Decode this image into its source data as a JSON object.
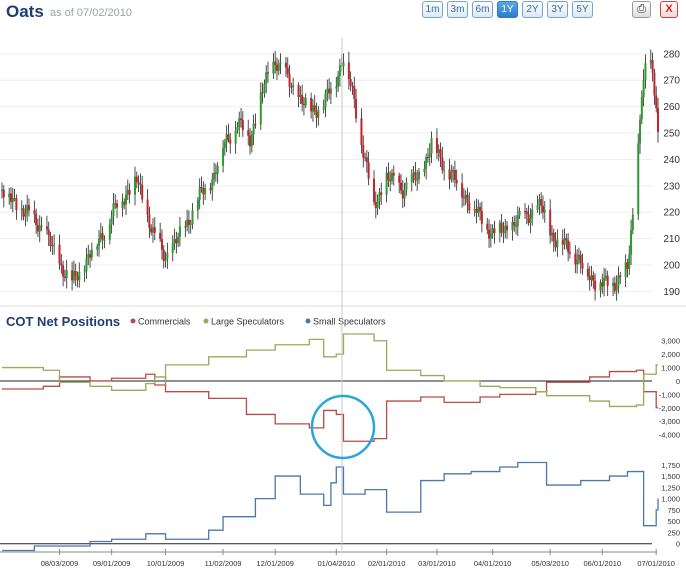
{
  "header": {
    "title": "Oats",
    "as_of": "as of 07/02/2010",
    "ranges": [
      "1m",
      "3m",
      "6m",
      "1Y",
      "2Y",
      "3Y",
      "5Y"
    ],
    "active_range": "1Y",
    "print_icon": "printer-icon",
    "close_label": "X"
  },
  "colors": {
    "up": "#2e9a2e",
    "down": "#c3232a",
    "commercials": "#b64c48",
    "large_speculators": "#9aaa58",
    "small_speculators": "#4a78ab",
    "highlight_circle": "#29a6dc"
  },
  "chart_data": [
    {
      "type": "candlestick",
      "title": "",
      "x_ticks": [
        "08/03/2009",
        "09/01/2009",
        "10/01/2009",
        "11/02/2009",
        "12/01/2009",
        "01/04/2010",
        "02/01/2010",
        "03/01/2010",
        "04/01/2010",
        "05/03/2010",
        "06/01/2010",
        "07/01/2010"
      ],
      "y_ticks": [
        190,
        200,
        210,
        220,
        230,
        240,
        250,
        260,
        270,
        280
      ],
      "ylim": [
        186,
        286
      ],
      "close_path": [
        [
          "07/02/2009",
          228
        ],
        [
          "07/15/2009",
          220
        ],
        [
          "07/25/2009",
          214
        ],
        [
          "08/01/2009",
          203
        ],
        [
          "08/10/2009",
          193
        ],
        [
          "08/20/2009",
          204
        ],
        [
          "08/28/2009",
          213
        ],
        [
          "09/05/2009",
          224
        ],
        [
          "09/15/2009",
          232
        ],
        [
          "09/25/2009",
          210
        ],
        [
          "10/01/2009",
          203
        ],
        [
          "10/10/2009",
          212
        ],
        [
          "10/20/2009",
          226
        ],
        [
          "10/28/2009",
          234
        ],
        [
          "11/02/2009",
          245
        ],
        [
          "11/10/2009",
          254
        ],
        [
          "11/17/2009",
          248
        ],
        [
          "11/25/2009",
          268
        ],
        [
          "12/01/2009",
          278
        ],
        [
          "12/10/2009",
          268
        ],
        [
          "12/20/2009",
          258
        ],
        [
          "12/28/2009",
          261
        ],
        [
          "01/04/2010",
          271
        ],
        [
          "01/08/2010",
          279
        ],
        [
          "01/14/2010",
          262
        ],
        [
          "01/20/2010",
          240
        ],
        [
          "01/25/2010",
          222
        ],
        [
          "02/01/2010",
          233
        ],
        [
          "02/10/2010",
          229
        ],
        [
          "02/20/2010",
          234
        ],
        [
          "02/26/2010",
          246
        ],
        [
          "03/05/2010",
          238
        ],
        [
          "03/15/2010",
          228
        ],
        [
          "03/25/2010",
          218
        ],
        [
          "04/01/2010",
          212
        ],
        [
          "04/10/2010",
          214
        ],
        [
          "04/20/2010",
          219
        ],
        [
          "04/28/2010",
          222
        ],
        [
          "05/05/2010",
          210
        ],
        [
          "05/15/2010",
          206
        ],
        [
          "05/22/2010",
          198
        ],
        [
          "05/28/2010",
          194
        ],
        [
          "06/05/2010",
          192
        ],
        [
          "06/15/2010",
          198
        ],
        [
          "06/19/2010",
          225
        ],
        [
          "06/23/2010",
          266
        ],
        [
          "06/27/2010",
          280
        ],
        [
          "07/01/2010",
          262
        ],
        [
          "07/02/2010",
          250
        ]
      ]
    },
    {
      "type": "line",
      "title": "COT Net Positions",
      "series": [
        {
          "name": "Commercials",
          "values": [
            [
              "07/02/2009",
              -600
            ],
            [
              "07/25/2009",
              -400
            ],
            [
              "08/03/2009",
              300
            ],
            [
              "08/20/2009",
              0
            ],
            [
              "09/01/2009",
              200
            ],
            [
              "09/20/2009",
              500
            ],
            [
              "09/25/2009",
              -300
            ],
            [
              "10/01/2009",
              300
            ],
            [
              "10/01/2009",
              -800
            ],
            [
              "10/25/2009",
              -1300
            ],
            [
              "11/15/2009",
              -2500
            ],
            [
              "12/01/2009",
              -3200
            ],
            [
              "12/20/2009",
              -3500
            ],
            [
              "12/28/2009",
              -2200
            ],
            [
              "01/04/2010",
              -2500
            ],
            [
              "01/08/2010",
              -4500
            ],
            [
              "01/25/2010",
              -4300
            ],
            [
              "02/01/2010",
              -1500
            ],
            [
              "02/20/2010",
              -1200
            ],
            [
              "03/05/2010",
              -1600
            ],
            [
              "03/25/2010",
              -1200
            ],
            [
              "04/05/2010",
              -1000
            ],
            [
              "04/25/2010",
              -800
            ],
            [
              "05/01/2010",
              -100
            ],
            [
              "05/25/2010",
              300
            ],
            [
              "06/05/2010",
              700
            ],
            [
              "06/20/2010",
              800
            ],
            [
              "06/24/2010",
              -800
            ],
            [
              "07/01/2010",
              -2000
            ],
            [
              "07/02/2010",
              -2000
            ]
          ]
        },
        {
          "name": "Large Speculators",
          "values": [
            [
              "07/02/2009",
              1000
            ],
            [
              "07/25/2009",
              800
            ],
            [
              "08/03/2009",
              -100
            ],
            [
              "08/20/2009",
              -400
            ],
            [
              "09/01/2009",
              -700
            ],
            [
              "09/20/2009",
              -200
            ],
            [
              "09/25/2009",
              300
            ],
            [
              "10/01/2009",
              -300
            ],
            [
              "10/01/2009",
              1200
            ],
            [
              "10/25/2009",
              1800
            ],
            [
              "11/15/2009",
              2300
            ],
            [
              "12/01/2009",
              2700
            ],
            [
              "12/20/2009",
              3100
            ],
            [
              "12/28/2009",
              1800
            ],
            [
              "01/04/2010",
              2000
            ],
            [
              "01/08/2010",
              3500
            ],
            [
              "01/25/2010",
              3000
            ],
            [
              "02/01/2010",
              800
            ],
            [
              "02/20/2010",
              400
            ],
            [
              "03/05/2010",
              0
            ],
            [
              "03/25/2010",
              -400
            ],
            [
              "04/05/2010",
              -500
            ],
            [
              "04/25/2010",
              -800
            ],
            [
              "05/01/2010",
              -1100
            ],
            [
              "05/25/2010",
              -1500
            ],
            [
              "06/05/2010",
              -1900
            ],
            [
              "06/20/2010",
              -1800
            ],
            [
              "06/24/2010",
              500
            ],
            [
              "07/01/2010",
              1200
            ],
            [
              "07/02/2010",
              1200
            ]
          ]
        }
      ],
      "y_ticks": [
        3000,
        2000,
        1000,
        0,
        -1000,
        -2000,
        -3000,
        -4000
      ],
      "y_tick_labels": [
        "3,000",
        "2,000",
        "1,000",
        "0",
        "-1,000",
        "-2,000",
        "-3,000",
        "-4,000"
      ],
      "ylim": [
        -5300,
        3800
      ]
    },
    {
      "type": "line",
      "series": [
        {
          "name": "Small Speculators",
          "values": [
            [
              "07/02/2009",
              -150
            ],
            [
              "07/20/2009",
              -50
            ],
            [
              "08/03/2009",
              -50
            ],
            [
              "08/20/2009",
              50
            ],
            [
              "09/01/2009",
              100
            ],
            [
              "09/20/2009",
              220
            ],
            [
              "10/01/2009",
              100
            ],
            [
              "10/25/2009",
              300
            ],
            [
              "11/02/2009",
              600
            ],
            [
              "11/20/2009",
              1000
            ],
            [
              "12/01/2009",
              1500
            ],
            [
              "12/15/2009",
              1100
            ],
            [
              "12/28/2009",
              850
            ],
            [
              "01/01/2010",
              1350
            ],
            [
              "01/04/2010",
              1700
            ],
            [
              "01/08/2010",
              1100
            ],
            [
              "01/20/2010",
              1200
            ],
            [
              "02/01/2010",
              700
            ],
            [
              "02/20/2010",
              1400
            ],
            [
              "03/05/2010",
              1550
            ],
            [
              "03/20/2010",
              1600
            ],
            [
              "04/05/2010",
              1700
            ],
            [
              "04/15/2010",
              1800
            ],
            [
              "05/01/2010",
              1300
            ],
            [
              "05/20/2010",
              1400
            ],
            [
              "06/05/2010",
              1500
            ],
            [
              "06/15/2010",
              1600
            ],
            [
              "06/24/2010",
              400
            ],
            [
              "07/01/2010",
              750
            ],
            [
              "07/02/2010",
              1000
            ]
          ]
        }
      ],
      "y_ticks": [
        1750,
        1500,
        1250,
        1000,
        750,
        500,
        250,
        0
      ],
      "y_tick_labels": [
        "1,750",
        "1,500",
        "1,250",
        "1,000",
        "750",
        "500",
        "250",
        "0"
      ],
      "ylim": [
        -50,
        1900
      ]
    }
  ]
}
